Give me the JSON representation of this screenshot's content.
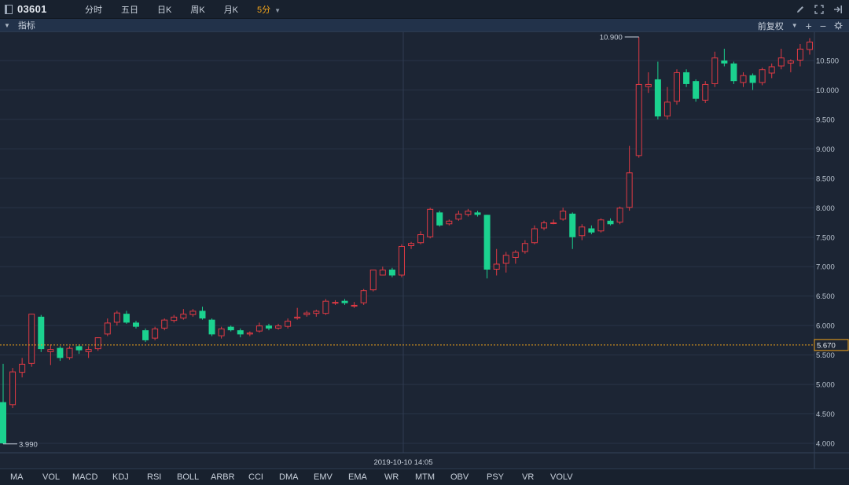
{
  "symbol": {
    "code": "03601"
  },
  "period_tabs": [
    {
      "label": "分时",
      "active": false
    },
    {
      "label": "五日",
      "active": false
    },
    {
      "label": "日K",
      "active": false
    },
    {
      "label": "周K",
      "active": false
    },
    {
      "label": "月K",
      "active": false
    },
    {
      "label": "5分",
      "active": true
    }
  ],
  "subbar": {
    "indicator_label": "指标",
    "adjust_label": "前复权"
  },
  "colors": {
    "up": "#e03a44",
    "down": "#1bd28f",
    "bg": "#1c2534",
    "grid": "#283447",
    "accent": "#f0a31b"
  },
  "chart_data": {
    "type": "candlestick",
    "y_ticks": [
      "4.000",
      "4.500",
      "5.000",
      "5.500",
      "6.000",
      "6.500",
      "7.000",
      "7.500",
      "8.000",
      "8.500",
      "9.000",
      "9.500",
      "10.000",
      "10.500"
    ],
    "ylim": [
      3.84,
      10.98
    ],
    "price_line": "5.670",
    "max_label": "10.900",
    "min_label": "3.990",
    "crosshair_time": "2019-10-10 14:05",
    "candles": [
      [
        4.7,
        4.0,
        5.35,
        3.99
      ],
      [
        4.65,
        5.22,
        5.28,
        4.6
      ],
      [
        5.2,
        5.35,
        5.45,
        5.12
      ],
      [
        5.35,
        6.2,
        6.2,
        5.3
      ],
      [
        6.15,
        5.6,
        6.18,
        5.55
      ],
      [
        5.55,
        5.6,
        5.68,
        5.33
      ],
      [
        5.62,
        5.45,
        5.65,
        5.4
      ],
      [
        5.45,
        5.62,
        5.65,
        5.42
      ],
      [
        5.65,
        5.58,
        5.68,
        5.52
      ],
      [
        5.55,
        5.6,
        5.65,
        5.45
      ],
      [
        5.6,
        5.8,
        5.8,
        5.57
      ],
      [
        5.85,
        6.05,
        6.12,
        5.82
      ],
      [
        6.05,
        6.22,
        6.25,
        6.0
      ],
      [
        6.2,
        6.05,
        6.25,
        6.03
      ],
      [
        6.05,
        5.98,
        6.08,
        5.95
      ],
      [
        5.92,
        5.75,
        5.95,
        5.72
      ],
      [
        5.78,
        5.95,
        5.98,
        5.75
      ],
      [
        5.95,
        6.1,
        6.12,
        5.92
      ],
      [
        6.08,
        6.15,
        6.18,
        6.05
      ],
      [
        6.12,
        6.2,
        6.28,
        6.1
      ],
      [
        6.18,
        6.25,
        6.28,
        6.15
      ],
      [
        6.25,
        6.12,
        6.32,
        6.1
      ],
      [
        6.1,
        5.85,
        6.12,
        5.82
      ],
      [
        5.82,
        5.95,
        5.98,
        5.78
      ],
      [
        5.98,
        5.92,
        6.0,
        5.9
      ],
      [
        5.92,
        5.85,
        5.95,
        5.8
      ],
      [
        5.85,
        5.88,
        5.9,
        5.82
      ],
      [
        5.9,
        6.0,
        6.05,
        5.88
      ],
      [
        6.0,
        5.95,
        6.03,
        5.92
      ],
      [
        5.95,
        6.0,
        6.03,
        5.93
      ],
      [
        5.98,
        6.08,
        6.12,
        5.95
      ],
      [
        6.12,
        6.15,
        6.3,
        6.1
      ],
      [
        6.18,
        6.22,
        6.25,
        6.15
      ],
      [
        6.2,
        6.25,
        6.27,
        6.15
      ],
      [
        6.2,
        6.42,
        6.45,
        6.18
      ],
      [
        6.4,
        6.4,
        6.43,
        6.35
      ],
      [
        6.42,
        6.38,
        6.45,
        6.35
      ],
      [
        6.35,
        6.35,
        6.4,
        6.3
      ],
      [
        6.38,
        6.6,
        6.62,
        6.35
      ],
      [
        6.6,
        6.95,
        6.95,
        6.58
      ],
      [
        6.85,
        6.95,
        7.0,
        6.85
      ],
      [
        6.95,
        6.85,
        6.98,
        6.82
      ],
      [
        6.85,
        7.35,
        7.38,
        6.82
      ],
      [
        7.35,
        7.4,
        7.42,
        7.3
      ],
      [
        7.4,
        7.55,
        7.6,
        7.38
      ],
      [
        7.5,
        7.98,
        8.0,
        7.48
      ],
      [
        7.92,
        7.7,
        7.95,
        7.68
      ],
      [
        7.72,
        7.78,
        7.8,
        7.7
      ],
      [
        7.8,
        7.9,
        7.95,
        7.78
      ],
      [
        7.88,
        7.95,
        7.98,
        7.85
      ],
      [
        7.92,
        7.88,
        7.95,
        7.85
      ],
      [
        7.88,
        6.95,
        7.88,
        6.8
      ],
      [
        6.95,
        7.05,
        7.3,
        6.85
      ],
      [
        7.05,
        7.2,
        7.25,
        6.9
      ],
      [
        7.15,
        7.25,
        7.28,
        7.05
      ],
      [
        7.25,
        7.4,
        7.45,
        7.22
      ],
      [
        7.4,
        7.65,
        7.7,
        7.38
      ],
      [
        7.65,
        7.75,
        7.78,
        7.62
      ],
      [
        7.75,
        7.75,
        7.8,
        7.72
      ],
      [
        7.8,
        7.95,
        8.0,
        7.78
      ],
      [
        7.9,
        7.5,
        7.92,
        7.3
      ],
      [
        7.52,
        7.68,
        7.72,
        7.45
      ],
      [
        7.65,
        7.58,
        7.7,
        7.55
      ],
      [
        7.6,
        7.8,
        7.82,
        7.58
      ],
      [
        7.78,
        7.72,
        7.82,
        7.7
      ],
      [
        7.75,
        8.0,
        8.02,
        7.72
      ],
      [
        8.0,
        8.6,
        9.05,
        7.95
      ],
      [
        8.88,
        10.1,
        10.9,
        8.85
      ],
      [
        10.05,
        10.1,
        10.3,
        9.95
      ],
      [
        10.18,
        9.55,
        10.48,
        9.5
      ],
      [
        9.55,
        9.8,
        10.05,
        9.5
      ],
      [
        9.8,
        10.3,
        10.35,
        9.75
      ],
      [
        10.3,
        10.1,
        10.35,
        10.05
      ],
      [
        10.15,
        9.85,
        10.18,
        9.8
      ],
      [
        9.82,
        10.1,
        10.15,
        9.78
      ],
      [
        10.1,
        10.55,
        10.65,
        10.05
      ],
      [
        10.5,
        10.45,
        10.7,
        10.4
      ],
      [
        10.45,
        10.15,
        10.48,
        10.1
      ],
      [
        10.12,
        10.25,
        10.3,
        10.05
      ],
      [
        10.25,
        10.12,
        10.28,
        10.0
      ],
      [
        10.12,
        10.35,
        10.38,
        10.08
      ],
      [
        10.28,
        10.4,
        10.45,
        10.2
      ],
      [
        10.4,
        10.55,
        10.7,
        10.35
      ],
      [
        10.45,
        10.5,
        10.52,
        10.3
      ],
      [
        10.5,
        10.7,
        10.78,
        10.4
      ],
      [
        10.68,
        10.82,
        10.88,
        10.6
      ]
    ]
  },
  "indicators": [
    "MA",
    "VOL",
    "MACD",
    "KDJ",
    "RSI",
    "BOLL",
    "ARBR",
    "CCI",
    "DMA",
    "EMV",
    "EMA",
    "WR",
    "MTM",
    "OBV",
    "PSY",
    "VR",
    "VOLV"
  ]
}
